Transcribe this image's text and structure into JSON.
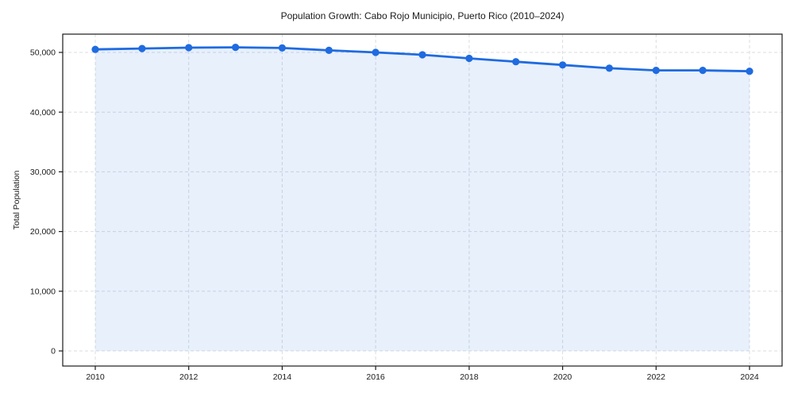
{
  "chart_data": {
    "type": "line",
    "title": "Population Growth: Cabo Rojo Municipio, Puerto Rico (2010–2024)",
    "xlabel": "",
    "ylabel": "Total Population",
    "x": [
      2010,
      2011,
      2012,
      2013,
      2014,
      2015,
      2016,
      2017,
      2018,
      2019,
      2020,
      2021,
      2022,
      2023,
      2024
    ],
    "series": [
      {
        "name": "Total Population",
        "values": [
          50500,
          50650,
          50800,
          50850,
          50750,
          50350,
          50000,
          49600,
          49000,
          48450,
          47900,
          47350,
          47000,
          47000,
          46850
        ]
      }
    ],
    "x_ticks": [
      2010,
      2012,
      2014,
      2016,
      2018,
      2020,
      2022,
      2024
    ],
    "y_ticks": [
      0,
      10000,
      20000,
      30000,
      40000,
      50000
    ],
    "y_tick_labels": [
      "0",
      "10,000",
      "20,000",
      "30,000",
      "40,000",
      "50,000"
    ],
    "xlim": [
      2009.3,
      2024.7
    ],
    "ylim": [
      -2500,
      53000
    ],
    "grid": true,
    "grid_style": "dashed",
    "legend": false,
    "marker": "circle",
    "area_fill": true,
    "colors": {
      "line": "#1f6be0",
      "marker": "#1f6be0",
      "area_fill_opacity": 0.1,
      "grid": "#d9dde2",
      "spine": "#1a1a1a",
      "text": "#1a1a1a",
      "background": "#ffffff"
    }
  }
}
